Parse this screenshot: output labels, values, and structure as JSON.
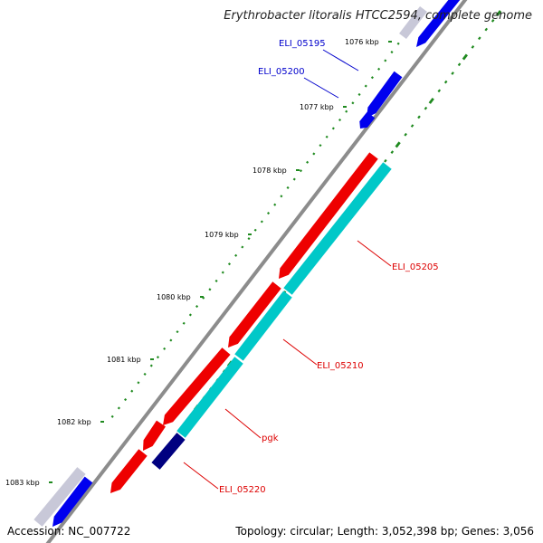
{
  "title": "Erythrobacter litoralis HTCC2594, complete genome",
  "accession": "Accession: NC_007722",
  "summary": "Topology: circular; Length: 3,052,398 bp; Genes: 3,056",
  "colors": {
    "backbone": "#8c8c8c",
    "tick": "#1f8a1f",
    "blue_gene": "#0000ee",
    "light_gene": "#c8c8d8",
    "red_gene": "#ee0000",
    "cyan_gene": "#00c8c8",
    "navy_gene": "#000080",
    "blue_label": "#0000cc",
    "red_label": "#dd0000"
  },
  "scale_ticks": [
    {
      "label": "1076 kbp"
    },
    {
      "label": "1077 kbp"
    },
    {
      "label": "1078 kbp"
    },
    {
      "label": "1079 kbp"
    },
    {
      "label": "1080 kbp"
    },
    {
      "label": "1081 kbp"
    },
    {
      "label": "1082 kbp"
    },
    {
      "label": "1083 kbp"
    }
  ],
  "genes": [
    {
      "label": "ELI_05195",
      "strand": "forward",
      "color_key": "blue_label"
    },
    {
      "label": "ELI_05200",
      "strand": "forward",
      "color_key": "blue_label"
    },
    {
      "label": "ELI_05205",
      "strand": "reverse",
      "color_key": "red_label"
    },
    {
      "label": "ELI_05210",
      "strand": "reverse",
      "color_key": "red_label"
    },
    {
      "label": "pgk",
      "strand": "reverse",
      "color_key": "red_label"
    },
    {
      "label": "ELI_05220",
      "strand": "reverse",
      "color_key": "red_label"
    }
  ]
}
